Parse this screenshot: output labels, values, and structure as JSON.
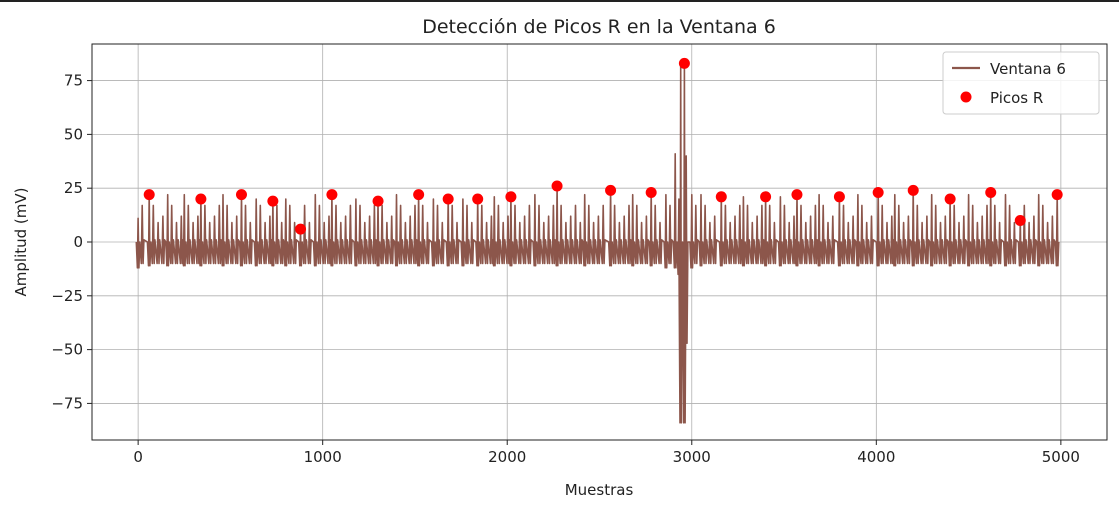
{
  "chart_data": {
    "type": "line",
    "title": "Detección de Picos R en la Ventana 6",
    "xlabel": "Muestras",
    "ylabel": "Amplitud (mV)",
    "xlim": [
      -250,
      5250
    ],
    "ylim": [
      -92,
      92
    ],
    "xticks": [
      0,
      1000,
      2000,
      3000,
      4000,
      5000
    ],
    "xtick_labels": [
      "0",
      "1000",
      "2000",
      "3000",
      "4000",
      "5000"
    ],
    "yticks": [
      -75,
      -50,
      -25,
      0,
      25,
      50,
      75
    ],
    "ytick_labels": [
      "−75",
      "−50",
      "−25",
      "0",
      "25",
      "50",
      "75"
    ],
    "grid": true,
    "legend_position": "top-right",
    "colors": {
      "signal": "#8c564b",
      "peaks": "#ff0000"
    },
    "series": [
      {
        "name": "Ventana 6",
        "kind": "line",
        "color": "#8c564b",
        "x": [
          0,
          60,
          160,
          250,
          340,
          460,
          560,
          640,
          730,
          800,
          880,
          960,
          1050,
          1180,
          1300,
          1400,
          1520,
          1600,
          1680,
          1760,
          1840,
          1930,
          2020,
          2150,
          2270,
          2420,
          2560,
          2680,
          2780,
          2860,
          2910,
          2930,
          2940,
          2960,
          2970,
          3000,
          3050,
          3160,
          3280,
          3400,
          3480,
          3570,
          3690,
          3800,
          3900,
          4010,
          4100,
          4200,
          4300,
          4400,
          4500,
          4620,
          4700,
          4780,
          4880,
          4980
        ],
        "peaks_y": [
          11,
          22,
          22,
          22,
          20,
          22,
          22,
          20,
          19,
          20,
          6,
          22,
          22,
          20,
          19,
          22,
          22,
          20,
          20,
          20,
          20,
          21,
          21,
          22,
          26,
          22,
          24,
          22,
          23,
          22,
          41,
          20,
          83,
          83,
          40,
          22,
          22,
          21,
          21,
          21,
          21,
          22,
          22,
          21,
          22,
          23,
          22,
          24,
          22,
          20,
          22,
          23,
          22,
          10,
          22,
          22
        ],
        "troughs_y": [
          -12,
          -11,
          -11,
          -11,
          -11,
          -11,
          -11,
          -11,
          -11,
          -11,
          -11,
          -11,
          -11,
          -11,
          -11,
          -11,
          -11,
          -11,
          -11,
          -11,
          -11,
          -11,
          -11,
          -11,
          -11,
          -11,
          -11,
          -11,
          -11,
          -12,
          -12,
          -15,
          -84,
          -84,
          -47,
          -12,
          -11,
          -11,
          -11,
          -11,
          -11,
          -11,
          -11,
          -11,
          -11,
          -11,
          -11,
          -11,
          -11,
          -11,
          -11,
          -11,
          -11,
          -11,
          -11,
          -11
        ]
      },
      {
        "name": "Picos R",
        "kind": "scatter",
        "color": "#ff0000",
        "x": [
          60,
          340,
          560,
          730,
          880,
          1050,
          1300,
          1520,
          1680,
          1840,
          2020,
          2270,
          2560,
          2780,
          2960,
          3160,
          3400,
          3570,
          3800,
          4010,
          4200,
          4400,
          4620,
          4780,
          4980
        ],
        "y": [
          22,
          20,
          22,
          19,
          6,
          22,
          19,
          22,
          20,
          20,
          21,
          26,
          24,
          23,
          83,
          21,
          21,
          22,
          21,
          23,
          24,
          20,
          23,
          10,
          22
        ]
      }
    ]
  }
}
